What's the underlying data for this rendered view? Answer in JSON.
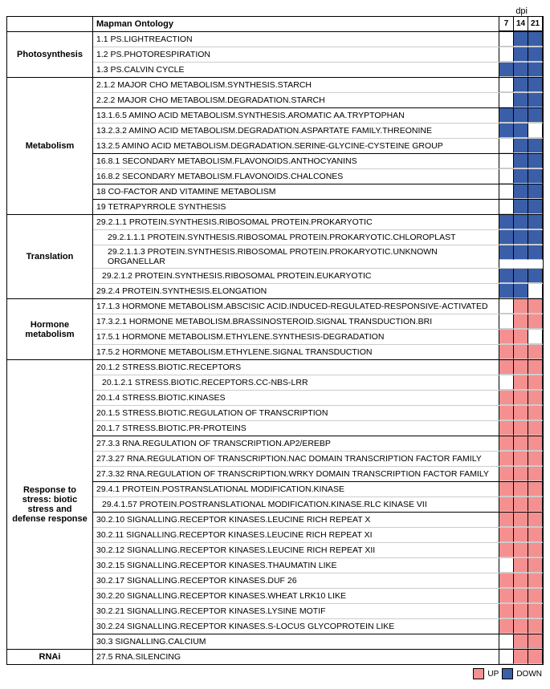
{
  "header": {
    "dpi_label": "dpi",
    "ontology_header": "Mapman Ontology",
    "timepoints": [
      "7",
      "14",
      "21"
    ]
  },
  "colors": {
    "up": "#f59090",
    "down": "#3a5ea8"
  },
  "legend": {
    "up_label": "UP",
    "down_label": "DOWN"
  },
  "sections": [
    {
      "category": "Photosynthesis",
      "groups": [
        {
          "rows": [
            {
              "label": "1.1 PS.LIGHTREACTION",
              "indent": 0,
              "cells": [
                "",
                "down",
                "down"
              ]
            },
            {
              "label": "1.2 PS.PHOTORESPIRATION",
              "indent": 0,
              "cells": [
                "",
                "down",
                "down"
              ]
            },
            {
              "label": "1.3 PS.CALVIN CYCLE",
              "indent": 0,
              "cells": [
                "down",
                "down",
                "down"
              ]
            }
          ]
        }
      ]
    },
    {
      "category": "Metabolism",
      "groups": [
        {
          "rows": [
            {
              "label": "2.1.2 MAJOR CHO METABOLISM.SYNTHESIS.STARCH",
              "indent": 0,
              "cells": [
                "",
                "down",
                "down"
              ]
            },
            {
              "label": "2.2.2 MAJOR CHO METABOLISM.DEGRADATION.STARCH",
              "indent": 0,
              "cells": [
                "",
                "down",
                "down"
              ]
            }
          ]
        },
        {
          "rows": [
            {
              "label": "13.1.6.5 AMINO ACID METABOLISM.SYNTHESIS.AROMATIC AA.TRYPTOPHAN",
              "indent": 0,
              "cells": [
                "down",
                "down",
                "down"
              ]
            },
            {
              "label": "13.2.3.2 AMINO ACID METABOLISM.DEGRADATION.ASPARTATE FAMILY.THREONINE",
              "indent": 0,
              "cells": [
                "down",
                "down",
                ""
              ]
            },
            {
              "label": "13.2.5 AMINO ACID METABOLISM.DEGRADATION.SERINE-GLYCINE-CYSTEINE GROUP",
              "indent": 0,
              "cells": [
                "",
                "down",
                "down"
              ]
            }
          ]
        },
        {
          "rows": [
            {
              "label": "16.8.1 SECONDARY METABOLISM.FLAVONOIDS.ANTHOCYANINS",
              "indent": 0,
              "cells": [
                "",
                "down",
                "down"
              ]
            },
            {
              "label": "16.8.2 SECONDARY METABOLISM.FLAVONOIDS.CHALCONES",
              "indent": 0,
              "cells": [
                "",
                "down",
                "down"
              ]
            }
          ]
        },
        {
          "rows": [
            {
              "label": "18 CO-FACTOR AND VITAMINE METABOLISM",
              "indent": 0,
              "cells": [
                "",
                "down",
                "down"
              ]
            }
          ]
        },
        {
          "rows": [
            {
              "label": "19 TETRAPYRROLE SYNTHESIS",
              "indent": 0,
              "cells": [
                "",
                "down",
                "down"
              ]
            }
          ]
        }
      ]
    },
    {
      "category": "Translation",
      "groups": [
        {
          "rows": [
            {
              "label": "29.2.1.1 PROTEIN.SYNTHESIS.RIBOSOMAL PROTEIN.PROKARYOTIC",
              "indent": 0,
              "cells": [
                "down",
                "down",
                "down"
              ]
            },
            {
              "label": "29.2.1.1.1 PROTEIN.SYNTHESIS.RIBOSOMAL PROTEIN.PROKARYOTIC.CHLOROPLAST",
              "indent": 1,
              "cells": [
                "down",
                "down",
                "down"
              ]
            },
            {
              "label": "29.2.1.1.3 PROTEIN.SYNTHESIS.RIBOSOMAL PROTEIN.PROKARYOTIC.UNKNOWN ORGANELLAR",
              "indent": 1,
              "cells": [
                "down",
                "down",
                "down"
              ]
            },
            {
              "label": "29.2.1.2 PROTEIN.SYNTHESIS.RIBOSOMAL PROTEIN.EUKARYOTIC",
              "indent": 0.5,
              "cells": [
                "down",
                "down",
                "down"
              ]
            },
            {
              "label": "29.2.4 PROTEIN.SYNTHESIS.ELONGATION",
              "indent": 0,
              "cells": [
                "down",
                "down",
                ""
              ]
            }
          ]
        }
      ]
    },
    {
      "category": "Hormone metabolism",
      "groups": [
        {
          "rows": [
            {
              "label": "17.1.3 HORMONE METABOLISM.ABSCISIC ACID.INDUCED-REGULATED-RESPONSIVE-ACTIVATED",
              "indent": 0,
              "cells": [
                "",
                "up",
                "up"
              ]
            },
            {
              "label": "17.3.2.1 HORMONE METABOLISM.BRASSINOSTEROID.SIGNAL TRANSDUCTION.BRI",
              "indent": 0,
              "cells": [
                "",
                "up",
                "up"
              ]
            },
            {
              "label": "17.5.1 HORMONE METABOLISM.ETHYLENE.SYNTHESIS-DEGRADATION",
              "indent": 0,
              "cells": [
                "up",
                "up",
                ""
              ]
            },
            {
              "label": "17.5.2 HORMONE METABOLISM.ETHYLENE.SIGNAL TRANSDUCTION",
              "indent": 0,
              "cells": [
                "up",
                "up",
                "up"
              ]
            }
          ]
        }
      ]
    },
    {
      "category": "Response to stress: biotic stress and defense response",
      "groups": [
        {
          "rows": [
            {
              "label": "20.1.2 STRESS.BIOTIC.RECEPTORS",
              "indent": 0,
              "cells": [
                "up",
                "up",
                "up"
              ]
            },
            {
              "label": "20.1.2.1 STRESS.BIOTIC.RECEPTORS.CC-NBS-LRR",
              "indent": 0.5,
              "cells": [
                "",
                "up",
                "up"
              ]
            },
            {
              "label": "20.1.4 STRESS.BIOTIC.KINASES",
              "indent": 0,
              "cells": [
                "up",
                "up",
                "up"
              ]
            },
            {
              "label": "20.1.5 STRESS.BIOTIC.REGULATION OF TRANSCRIPTION",
              "indent": 0,
              "cells": [
                "up",
                "up",
                "up"
              ]
            },
            {
              "label": "20.1.7 STRESS.BIOTIC.PR-PROTEINS",
              "indent": 0,
              "cells": [
                "up",
                "up",
                "up"
              ]
            }
          ]
        },
        {
          "rows": [
            {
              "label": "27.3.3 RNA.REGULATION OF TRANSCRIPTION.AP2/EREBP",
              "indent": 0,
              "cells": [
                "up",
                "up",
                "up"
              ]
            },
            {
              "label": "27.3.27 RNA.REGULATION OF TRANSCRIPTION.NAC DOMAIN TRANSCRIPTION FACTOR FAMILY",
              "indent": 0,
              "cells": [
                "up",
                "up",
                "up"
              ]
            },
            {
              "label": "27.3.32 RNA.REGULATION OF TRANSCRIPTION.WRKY DOMAIN TRANSCRIPTION FACTOR FAMILY",
              "indent": 0,
              "cells": [
                "up",
                "up",
                "up"
              ]
            }
          ]
        },
        {
          "rows": [
            {
              "label": "29.4.1 PROTEIN.POSTRANSLATIONAL MODIFICATION.KINASE",
              "indent": 0,
              "cells": [
                "up",
                "up",
                "up"
              ]
            },
            {
              "label": "29.4.1.57 PROTEIN.POSTRANSLATIONAL MODIFICATION.KINASE.RLC KINASE VII",
              "indent": 0.5,
              "cells": [
                "up",
                "up",
                "up"
              ]
            }
          ]
        },
        {
          "rows": [
            {
              "label": "30.2.10 SIGNALLING.RECEPTOR KINASES.LEUCINE RICH REPEAT X",
              "indent": 0,
              "cells": [
                "up",
                "up",
                "up"
              ]
            },
            {
              "label": "30.2.11 SIGNALLING.RECEPTOR KINASES.LEUCINE RICH REPEAT XI",
              "indent": 0,
              "cells": [
                "up",
                "up",
                "up"
              ]
            },
            {
              "label": "30.2.12 SIGNALLING.RECEPTOR KINASES.LEUCINE RICH REPEAT XII",
              "indent": 0,
              "cells": [
                "up",
                "up",
                "up"
              ]
            },
            {
              "label": "30.2.15 SIGNALLING.RECEPTOR KINASES.THAUMATIN LIKE",
              "indent": 0,
              "cells": [
                "",
                "up",
                "up"
              ]
            },
            {
              "label": "30.2.17 SIGNALLING.RECEPTOR KINASES.DUF 26",
              "indent": 0,
              "cells": [
                "up",
                "up",
                "up"
              ]
            },
            {
              "label": "30.2.20 SIGNALLING.RECEPTOR KINASES.WHEAT LRK10 LIKE",
              "indent": 0,
              "cells": [
                "up",
                "up",
                "up"
              ]
            },
            {
              "label": "30.2.21 SIGNALLING.RECEPTOR KINASES.LYSINE MOTIF",
              "indent": 0,
              "cells": [
                "up",
                "up",
                "up"
              ]
            },
            {
              "label": "30.2.24 SIGNALLING.RECEPTOR KINASES.S-LOCUS GLYCOPROTEIN LIKE",
              "indent": 0,
              "cells": [
                "up",
                "up",
                "up"
              ]
            }
          ]
        },
        {
          "rows": [
            {
              "label": "30.3 SIGNALLING.CALCIUM",
              "indent": 0,
              "cells": [
                "",
                "up",
                "up"
              ]
            }
          ]
        }
      ]
    },
    {
      "category": "RNAi",
      "groups": [
        {
          "rows": [
            {
              "label": "27.5 RNA.SILENCING",
              "indent": 0,
              "cells": [
                "",
                "up",
                "up"
              ]
            }
          ]
        }
      ]
    }
  ]
}
